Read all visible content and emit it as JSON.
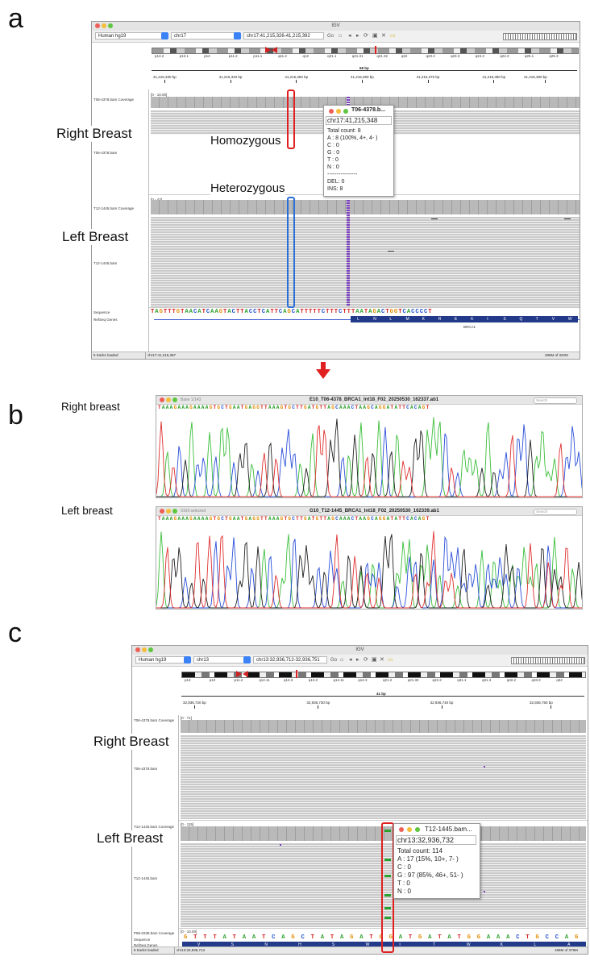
{
  "panels": {
    "a": "a",
    "b": "b",
    "c": "c"
  },
  "igv_a": {
    "title": "IGV",
    "genome": "Human hg19",
    "chromosome": "chr17",
    "locus": "chr17:41,215,326-41,215,392",
    "go_label": "Go",
    "bands": [
      "p13.2",
      "p13.1",
      "p12",
      "p11.2",
      "p11.1",
      "q11.2",
      "q12",
      "q21.1",
      "q21.31",
      "q21.32",
      "q22",
      "q23.2",
      "q23.3",
      "q24.2",
      "q24.3",
      "q25.1",
      "q25.3"
    ],
    "span_label": "68 bp",
    "ruler_ticks": [
      "41,215,330 bp",
      "41,215,340 bp",
      "41,215,350 bp",
      "41,215,360 bp",
      "41,215,370 bp",
      "41,215,380 bp",
      "41,215,390 bp"
    ],
    "tracks": {
      "t06_cov": "T06-4378.bam Coverage",
      "t06_bam": "T06-4378.bam",
      "t12_cov": "T12-1445.bam Coverage",
      "t12_bam": "T12-1445.bam",
      "sequence": "Sequence",
      "refseq": "RefSeq Genes",
      "cov_scale_1": "[0 - 10.00]",
      "cov_scale_2": "[0 - 43]"
    },
    "sequence": "TAGTTTGTAACATCAAGTACTTACCTCATTCAGCATTTTTCTTTCTTTAATAGACTGGTCACCCCT",
    "amino_acids": [
      "L",
      "N",
      "L",
      "M",
      "K",
      "R",
      "E",
      "K",
      "I",
      "S",
      "Q",
      "T",
      "V",
      "W"
    ],
    "gene": "BRCA1",
    "status_left": "5 tracks loaded",
    "status_locus": "chr17:41,215,387",
    "status_mem": "286M of 322M",
    "label_right": "Right Breast",
    "label_left": "Left Breast",
    "label_homo": "Homozygous",
    "label_hetero": "Heterozygous",
    "popup": {
      "title": "T06-4378.b...",
      "locus": "chr17:41,215,348",
      "lines": [
        "Total count: 8",
        "A : 8 (100%, 4+, 4- )",
        "C : 0",
        "G : 0",
        "T : 0",
        "N : 0",
        "----------------",
        "DEL: 0",
        "INS: 8"
      ]
    }
  },
  "chromatogram": {
    "label_right": "Right breast",
    "label_left": "Left breast",
    "right": {
      "title": "E10_T06-4378_BRCA1_Int18_F02_20250530_162337.ab1",
      "base_info": "Base 1/143",
      "search": "Search"
    },
    "left": {
      "title": "G10_T12-1445_BRCA1_Int18_F02_20250530_162339.ab1",
      "base_info": "0169 selected",
      "search": "Search"
    },
    "sequence": "TAAAGAAAGAAAAGTGCTGAATGAGGTTAAAGTGCTTGATGTTAGCAAACTAAGCAGGATATTCACAGT"
  },
  "igv_c": {
    "title": "IGV",
    "genome": "Human hg19",
    "chromosome": "chr13",
    "locus": "chr13:32,936,712-32,936,751",
    "go_label": "Go",
    "bands": [
      "p13",
      "p12",
      "p11.2",
      "q12.11",
      "q12.3",
      "q13.2",
      "q14.11",
      "q14.3",
      "q21.2",
      "q21.32",
      "q22.2",
      "q31.1",
      "q31.3",
      "q32.2",
      "q33.2",
      "q34"
    ],
    "span_label": "41 bp",
    "ruler_ticks": [
      "32,936,720 bp",
      "32,936,730 bp",
      "32,936,740 bp",
      "32,936,750 bp"
    ],
    "tracks": {
      "t06_cov": "T06-4378.bam Coverage",
      "t06_bam": "T06-4378.bam",
      "t12_cov": "T12-1445.bam Coverage",
      "t12_bam": "T12-1445.bam",
      "p85": "P85-0338.bam Coverage",
      "sequence": "Sequence",
      "refseq": "RefSeq Genes",
      "cov_scale_1": "[0 - 71]",
      "cov_scale_2": "[0 - 115]",
      "cov_scale_3": "[0 - 10.00]"
    },
    "sequence": "GTTTATAATCAGCTATAGATGGATGATATGGAAACTGCCAG",
    "amino_acids": [
      "V",
      "S",
      "N",
      "H",
      "S",
      "W",
      "I",
      "T",
      "W",
      "K",
      "L",
      "A"
    ],
    "status_left": "6 tracks loaded",
    "status_locus": "chr13:32,936,713",
    "status_mem": "185M of 379M",
    "label_right": "Right Breast",
    "label_left": "Left Breast",
    "popup": {
      "title": "T12-1445.bam...",
      "locus": "chr13:32,936,732",
      "lines": [
        "Total count: 114",
        "A : 17 (15%, 10+, 7- )",
        "C : 0",
        "G : 97 (85%, 46+, 51- )",
        "T : 0",
        "N : 0"
      ]
    }
  },
  "colors": {
    "A": "#2ca02c",
    "C": "#1f4fd0",
    "G": "#e08a00",
    "T": "#d62020",
    "red": "#e02020",
    "blue": "#2a6fd6",
    "trace_A": "#3cbf3c",
    "trace_C": "#2a4fd8",
    "trace_G": "#222222",
    "trace_T": "#e03030"
  }
}
